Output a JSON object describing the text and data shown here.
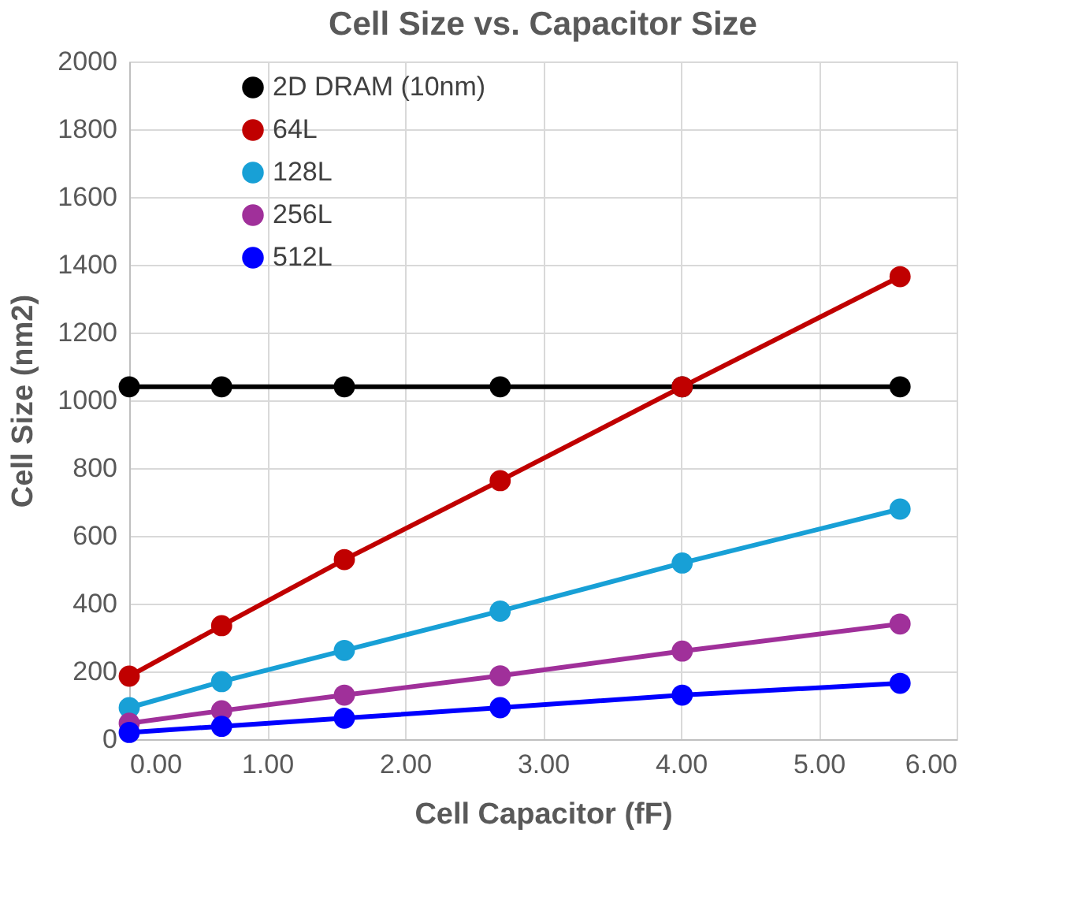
{
  "chart_data": {
    "type": "line",
    "title": "Cell Size vs. Capacitor Size",
    "xlabel": "Cell Capacitor  (fF)",
    "ylabel": "Cell Size (nm2)",
    "x": [
      0,
      0.67,
      1.56,
      2.69,
      4.01,
      5.59
    ],
    "series": [
      {
        "name": "2D DRAM (10nm)",
        "color": "#000000",
        "values": [
          1040,
          1040,
          1040,
          1040,
          1040,
          1040
        ]
      },
      {
        "name": "64L",
        "color": "#c00000",
        "values": [
          186,
          335,
          530,
          763,
          1040,
          1365
        ]
      },
      {
        "name": "128L",
        "color": "#18a0d6",
        "values": [
          93,
          170,
          262,
          378,
          520,
          679
        ]
      },
      {
        "name": "256L",
        "color": "#a0309a",
        "values": [
          47,
          84,
          130,
          187,
          260,
          340
        ]
      },
      {
        "name": "512L",
        "color": "#0000ff",
        "values": [
          20,
          38,
          62,
          93,
          130,
          165
        ]
      }
    ],
    "xlim": [
      0,
      6
    ],
    "xticks": [
      {
        "value": 0,
        "label": "0.00"
      },
      {
        "value": 1,
        "label": "1.00"
      },
      {
        "value": 2,
        "label": "2.00"
      },
      {
        "value": 3,
        "label": "3.00"
      },
      {
        "value": 4,
        "label": "4.00"
      },
      {
        "value": 5,
        "label": "5.00"
      },
      {
        "value": 6,
        "label": "6.00"
      }
    ],
    "ylim": [
      0,
      2000
    ],
    "yticks": [
      0,
      200,
      400,
      600,
      800,
      1000,
      1200,
      1400,
      1600,
      1800,
      2000
    ],
    "grid": true,
    "legend": "top left",
    "marker": "circle",
    "line_style": "solid"
  }
}
